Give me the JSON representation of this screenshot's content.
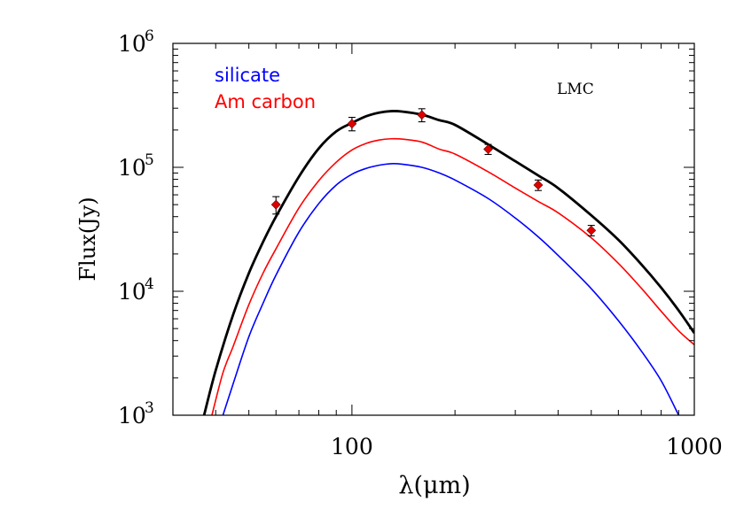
{
  "chart_data": {
    "type": "line",
    "x_scale": "log",
    "y_scale": "log",
    "xlabel": "λ(μm)",
    "ylabel": "Flux(Jy)",
    "xlim": [
      30,
      1000
    ],
    "ylim": [
      1000,
      1000000
    ],
    "x_ticks": [
      {
        "value": 100,
        "label": "100"
      },
      {
        "value": 1000,
        "label": "1000"
      }
    ],
    "y_ticks": [
      {
        "value": 1000,
        "base": "10",
        "exp": "3"
      },
      {
        "value": 10000,
        "base": "10",
        "exp": "4"
      },
      {
        "value": 100000,
        "base": "10",
        "exp": "5"
      },
      {
        "value": 1000000,
        "base": "10",
        "exp": "6"
      }
    ],
    "annotation": "LMC",
    "legend_position": "top-left",
    "colors": {
      "total": "#000000",
      "silicate": "#0000ff",
      "carbon": "#ff0000",
      "points": "#dd0000"
    },
    "series": [
      {
        "name": "silicate",
        "color": "#0000ff",
        "x": [
          42,
          45,
          50,
          55,
          60,
          70,
          80,
          90,
          100,
          110,
          120,
          130,
          140,
          160,
          180,
          200,
          250,
          300,
          350,
          400,
          500,
          600,
          700,
          800,
          900
        ],
        "y": [
          1000,
          1800,
          4300,
          8000,
          13500,
          30000,
          51000,
          72000,
          88000,
          98000,
          104000,
          107000,
          106000,
          100000,
          90000,
          79000,
          56000,
          39000,
          27500,
          19500,
          10500,
          5800,
          3300,
          1900,
          1000
        ]
      },
      {
        "name": "Am carbon",
        "color": "#ff0000",
        "x": [
          39,
          42,
          45,
          50,
          55,
          60,
          70,
          80,
          90,
          100,
          110,
          120,
          130,
          140,
          160,
          180,
          200,
          250,
          300,
          350,
          400,
          500,
          600,
          700,
          800,
          900,
          1000
        ],
        "y": [
          1000,
          2200,
          3600,
          7800,
          14000,
          22000,
          47000,
          78000,
          110000,
          138000,
          156000,
          166000,
          170000,
          169000,
          160000,
          140000,
          128000,
          92000,
          68000,
          53000,
          43000,
          27000,
          16800,
          10600,
          6900,
          4800,
          3700
        ]
      },
      {
        "x": [
          37,
          40,
          45,
          50,
          55,
          60,
          70,
          80,
          90,
          100,
          110,
          120,
          130,
          140,
          160,
          180,
          200,
          250,
          300,
          350,
          400,
          500,
          600,
          700,
          800,
          900,
          1000
        ],
        "y": [
          1000,
          2300,
          6500,
          14000,
          25000,
          40000,
          84000,
          142000,
          195000,
          228000,
          258000,
          276000,
          284000,
          282000,
          266000,
          240000,
          220000,
          153000,
          112000,
          86000,
          68000,
          41000,
          26000,
          16500,
          10700,
          7000,
          4600
        ]
      }
    ],
    "observations": {
      "x": [
        60,
        100,
        160,
        250,
        350,
        500
      ],
      "y": [
        50000,
        225000,
        265000,
        140000,
        72000,
        31000
      ],
      "y_err": [
        8000,
        28000,
        32000,
        13000,
        7000,
        3000
      ]
    }
  }
}
